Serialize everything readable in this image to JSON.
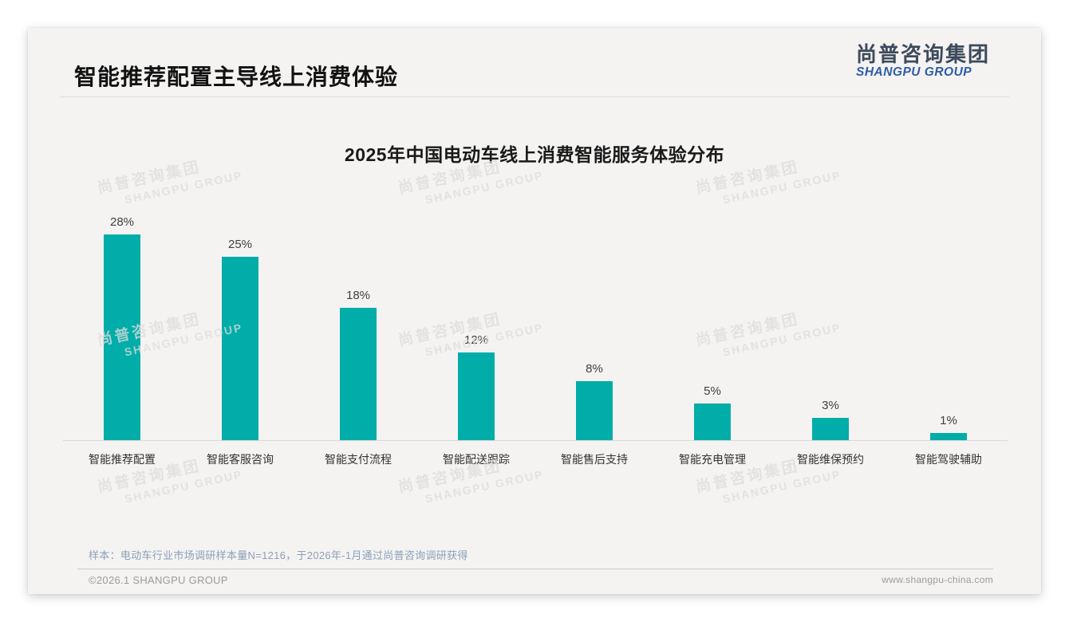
{
  "slide": {
    "header_title": "智能推荐配置主导线上消费体验",
    "logo": {
      "cn": "尚普咨询集团",
      "en": "SHANGPU GROUP"
    },
    "footnote": "样本：电动车行业市场调研样本量N=1216，于2026年-1月通过尚普咨询调研获得",
    "footer_left": "©2026.1 SHANGPU GROUP",
    "footer_right": "www.shangpu-china.com"
  },
  "watermark": {
    "cn": "尚普咨询集团",
    "en": "SHANGPU GROUP"
  },
  "colors": {
    "bar": "#00ADA8",
    "logo_cn": "#3d4a5c",
    "logo_en": "#2e5ca7",
    "slide_bg": "#f4f3f2",
    "axis": "#d8d8d8"
  },
  "chart_data": {
    "type": "bar",
    "title": "2025年中国电动车线上消费智能服务体验分布",
    "categories": [
      "智能推荐配置",
      "智能客服咨询",
      "智能支付流程",
      "智能配送跟踪",
      "智能售后支持",
      "智能充电管理",
      "智能维保预约",
      "智能驾驶辅助"
    ],
    "values": [
      28,
      25,
      18,
      12,
      8,
      5,
      3,
      1
    ],
    "value_labels": [
      "28%",
      "25%",
      "18%",
      "12%",
      "8%",
      "5%",
      "3%",
      "1%"
    ],
    "unit": "%",
    "xlabel": "",
    "ylabel": "",
    "ylim": [
      0,
      30
    ],
    "grid": false,
    "legend": false
  }
}
